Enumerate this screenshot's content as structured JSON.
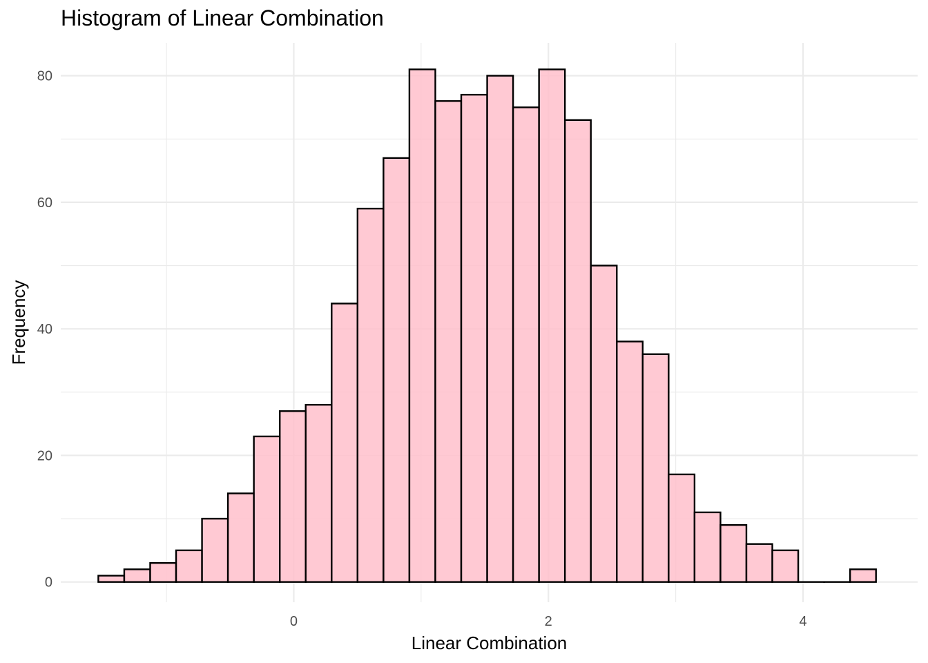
{
  "chart_data": {
    "type": "bar",
    "title": "Histogram of Linear Combination",
    "xlabel": "Linear Combination",
    "ylabel": "Frequency",
    "bin_width": 0.2036,
    "bin_start": -1.535,
    "values": [
      1,
      2,
      3,
      5,
      10,
      14,
      23,
      27,
      28,
      44,
      59,
      67,
      81,
      76,
      77,
      80,
      75,
      81,
      73,
      50,
      38,
      36,
      17,
      11,
      9,
      6,
      5,
      0,
      0,
      2
    ],
    "xlim": [
      -1.83,
      4.9
    ],
    "ylim": [
      -3.2,
      85.2
    ],
    "x_ticks": [
      0,
      2,
      4
    ],
    "x_tick_labels": [
      "0",
      "2",
      "4"
    ],
    "y_ticks": [
      0,
      20,
      40,
      60,
      80
    ],
    "y_tick_labels": [
      "0",
      "20",
      "40",
      "60",
      "80"
    ],
    "grid": true,
    "colors": {
      "fill": "#ffc0cb",
      "outline": "#000000",
      "grid": "#ebebeb"
    }
  }
}
